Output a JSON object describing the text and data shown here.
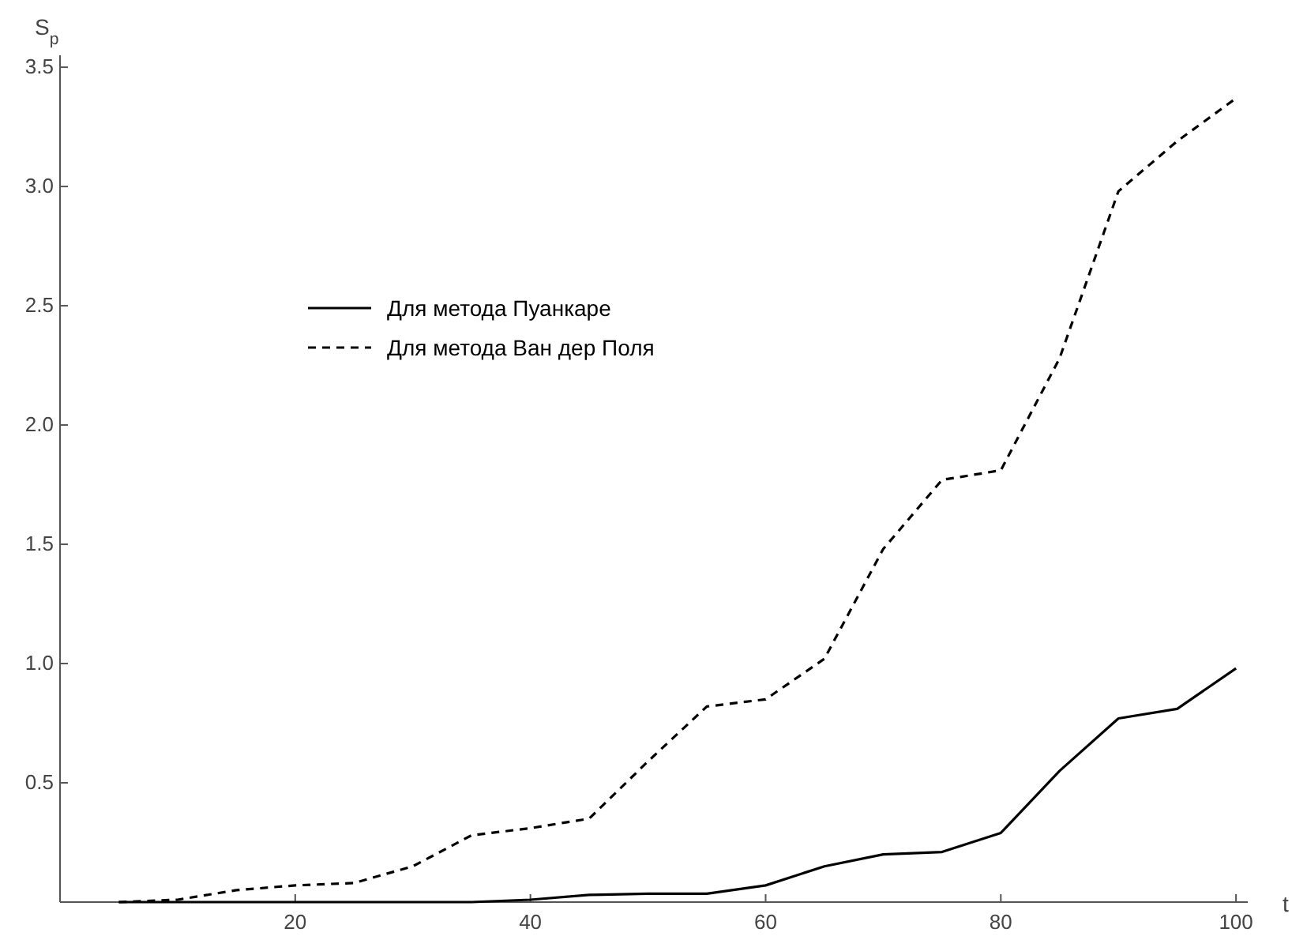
{
  "chart_data": {
    "type": "line",
    "ylabel": "S$_{p}$",
    "xlabel": "t",
    "x": [
      5,
      10,
      15,
      20,
      25,
      30,
      35,
      40,
      45,
      50,
      55,
      60,
      65,
      70,
      75,
      80,
      85,
      90,
      95,
      100
    ],
    "series": [
      {
        "name": "Для метода Пуанкаре",
        "color": "#000000",
        "line_style": "solid",
        "values": [
          0,
          0,
          0,
          0,
          0,
          0,
          0,
          0.01,
          0.03,
          0.035,
          0.035,
          0.07,
          0.15,
          0.2,
          0.21,
          0.29,
          0.55,
          0.77,
          0.81,
          0.98
        ]
      },
      {
        "name": "Для метода Ван дер Поля",
        "color": "#000000",
        "line_style": "dashed",
        "values": [
          0,
          0.01,
          0.05,
          0.07,
          0.08,
          0.15,
          0.28,
          0.31,
          0.35,
          0.59,
          0.82,
          0.85,
          1.02,
          1.48,
          1.77,
          1.81,
          2.28,
          2.98,
          3.19,
          3.37
        ]
      }
    ],
    "xlim": [
      0,
      101
    ],
    "ylim": [
      0,
      3.55
    ],
    "xticks": [
      20,
      40,
      60,
      80,
      100
    ],
    "yticks": [
      {
        "value": 0.5,
        "label": "0.5"
      },
      {
        "value": 1,
        "label": "1.0"
      },
      {
        "value": 1.5,
        "label": "1.5"
      },
      {
        "value": 2,
        "label": "2.0"
      },
      {
        "value": 2.5,
        "label": "2.5"
      },
      {
        "value": 3,
        "label": "3.0"
      },
      {
        "value": 3.5,
        "label": "3.5"
      }
    ],
    "legend": "top left",
    "grid": false,
    "marker": "none"
  }
}
